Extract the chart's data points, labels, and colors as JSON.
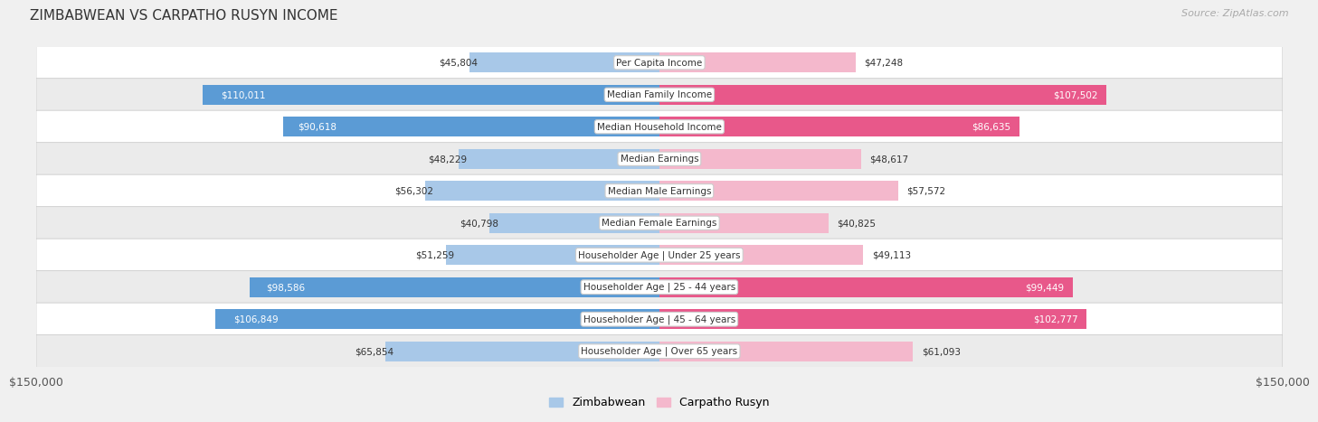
{
  "title": "ZIMBABWEAN VS CARPATHO RUSYN INCOME",
  "source": "Source: ZipAtlas.com",
  "categories": [
    "Per Capita Income",
    "Median Family Income",
    "Median Household Income",
    "Median Earnings",
    "Median Male Earnings",
    "Median Female Earnings",
    "Householder Age | Under 25 years",
    "Householder Age | 25 - 44 years",
    "Householder Age | 45 - 64 years",
    "Householder Age | Over 65 years"
  ],
  "zimbabwean_values": [
    45804,
    110011,
    90618,
    48229,
    56302,
    40798,
    51259,
    98586,
    106849,
    65854
  ],
  "carpatho_rusyn_values": [
    47248,
    107502,
    86635,
    48617,
    57572,
    40825,
    49113,
    99449,
    102777,
    61093
  ],
  "zimbabwean_labels": [
    "$45,804",
    "$110,011",
    "$90,618",
    "$48,229",
    "$56,302",
    "$40,798",
    "$51,259",
    "$98,586",
    "$106,849",
    "$65,854"
  ],
  "carpatho_rusyn_labels": [
    "$47,248",
    "$107,502",
    "$86,635",
    "$48,617",
    "$57,572",
    "$40,825",
    "$49,113",
    "$99,449",
    "$102,777",
    "$61,093"
  ],
  "max_value": 150000,
  "zim_color_light": "#a8c8e8",
  "zim_color_dark": "#5b9bd5",
  "carp_color_light": "#f4b8cc",
  "carp_color_dark": "#e8588a",
  "zim_threshold": 80000,
  "carp_threshold": 80000,
  "bar_height": 0.62,
  "bg_color": "#f0f0f0",
  "row_color_white": "#ffffff",
  "row_color_gray": "#ebebeb",
  "legend_zim_color": "#a8c8e8",
  "legend_carp_color": "#f4b8cc",
  "x_label_left": "$150,000",
  "x_label_right": "$150,000",
  "title_fontsize": 11,
  "source_fontsize": 8,
  "label_fontsize": 7.5,
  "cat_fontsize": 7.5
}
